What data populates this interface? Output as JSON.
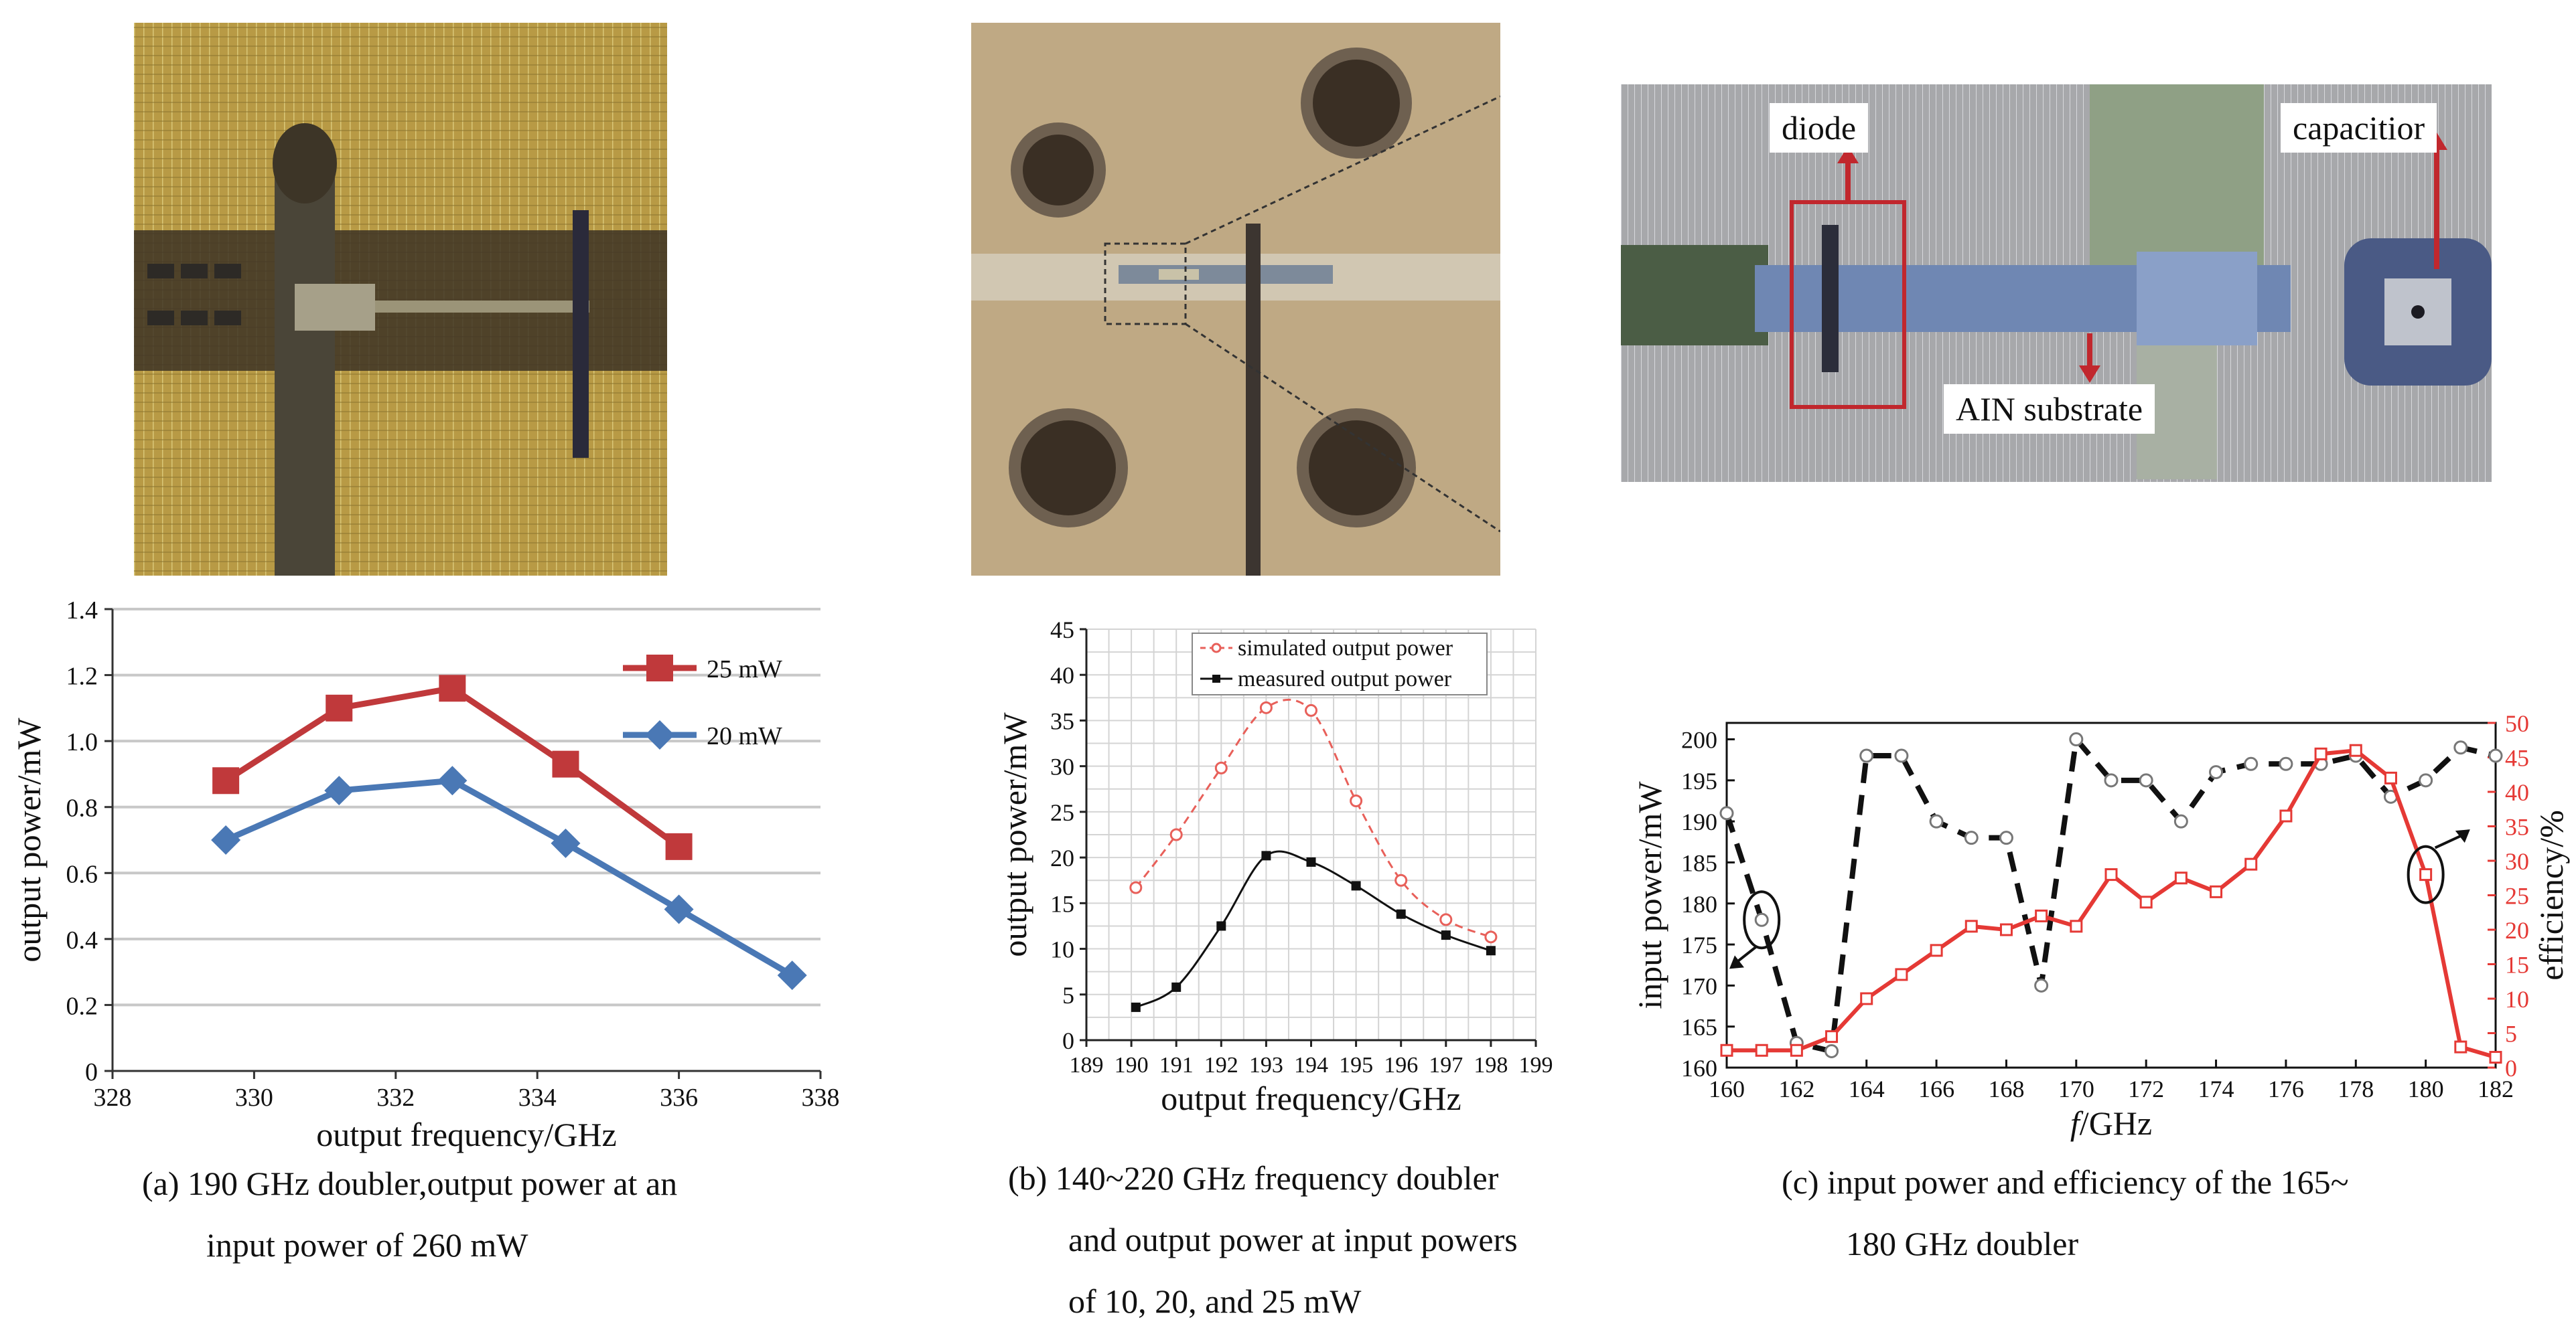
{
  "figure": {
    "photo_a": {
      "alt": "photo-a"
    },
    "photo_b": {
      "alt": "photo-b"
    },
    "photo_c": {
      "labels": {
        "diode": "diode",
        "capacitor": "capacitior",
        "substrate": "AIN substrate"
      }
    }
  },
  "captions": {
    "a": [
      "(a) 190 GHz doubler,output power at an",
      "input power of 260 mW"
    ],
    "b": [
      "(b) 140~220 GHz frequency doubler",
      "and output power at input powers",
      "of 10, 20, and 25 mW"
    ],
    "c": [
      "(c) input power and efficiency of the 165~",
      "180 GHz doubler"
    ]
  },
  "chart_data": [
    {
      "type": "line",
      "title": "",
      "xlabel": "output frequency/GHz",
      "ylabel": "output power/mW",
      "xlim": [
        328,
        338
      ],
      "ylim": [
        0,
        1.4
      ],
      "xticks": [
        328,
        330,
        332,
        334,
        336,
        338
      ],
      "yticks": [
        0,
        0.2,
        0.4,
        0.6,
        0.8,
        1.0,
        1.2,
        1.4
      ],
      "ytick_labels": [
        "0",
        "0.2",
        "0.4",
        "0.6",
        "0.8",
        "1.0",
        "1.2",
        "1.4"
      ],
      "legend_position": "top-right",
      "series": [
        {
          "name": "25 mW",
          "color": "#c0393b",
          "marker": "square",
          "x": [
            329.6,
            331.2,
            332.8,
            334.4,
            336.0
          ],
          "y": [
            0.88,
            1.1,
            1.16,
            0.93,
            0.68
          ]
        },
        {
          "name": "20 mW",
          "color": "#4a78b5",
          "marker": "diamond",
          "x": [
            329.6,
            331.2,
            332.8,
            334.4,
            336.0,
            337.6
          ],
          "y": [
            0.7,
            0.85,
            0.88,
            0.69,
            0.49,
            0.29
          ]
        }
      ]
    },
    {
      "type": "line",
      "title": "",
      "xlabel": "output frequency/GHz",
      "ylabel": "output power/mW",
      "xlim": [
        189,
        199
      ],
      "ylim": [
        0,
        45
      ],
      "xticks": [
        189,
        190,
        191,
        192,
        193,
        194,
        195,
        196,
        197,
        198,
        199
      ],
      "yticks": [
        0,
        5,
        10,
        15,
        20,
        25,
        30,
        35,
        40,
        45
      ],
      "grid": true,
      "legend_position": "top",
      "series": [
        {
          "name": "simulated output power",
          "color": "#e8605a",
          "marker": "open-circle",
          "dashed": true,
          "x": [
            190.1,
            191.0,
            192.0,
            193.0,
            194.0,
            195.0,
            196.0,
            197.0,
            198.0
          ],
          "y": [
            16.7,
            22.5,
            29.8,
            36.4,
            36.1,
            26.2,
            17.5,
            13.2,
            11.3
          ]
        },
        {
          "name": "measured  output power",
          "color": "#111111",
          "marker": "filled-square",
          "x": [
            190.1,
            191.0,
            192.0,
            193.0,
            194.0,
            195.0,
            196.0,
            197.0,
            198.0
          ],
          "y": [
            3.6,
            5.8,
            12.5,
            20.2,
            19.5,
            16.9,
            13.8,
            11.5,
            9.8
          ]
        }
      ]
    },
    {
      "type": "line",
      "title": "",
      "xlabel": "f/GHz",
      "xlabel_italic_part": "f",
      "xlabel_rest": "/GHz",
      "ylabel": "input power/mW",
      "y2label": "efficiency/%",
      "xlim": [
        160,
        182
      ],
      "ylim": [
        160,
        202
      ],
      "y2lim": [
        0,
        50
      ],
      "xticks": [
        160,
        162,
        164,
        166,
        168,
        170,
        172,
        174,
        176,
        178,
        180,
        182
      ],
      "yticks": [
        160,
        165,
        170,
        175,
        180,
        185,
        190,
        195,
        200
      ],
      "y2ticks": [
        0,
        5,
        10,
        15,
        20,
        25,
        30,
        35,
        40,
        45,
        50
      ],
      "series": [
        {
          "name": "",
          "axis": "left",
          "color": "#111111",
          "marker": "open-circle",
          "dashed": true,
          "x": [
            160,
            161,
            162,
            163,
            164,
            165,
            166,
            167,
            168,
            169,
            170,
            171,
            172,
            173,
            174,
            175,
            176,
            177,
            178,
            179,
            180,
            181,
            182
          ],
          "y": [
            191,
            178,
            163,
            162,
            198,
            198,
            190,
            188,
            188,
            170,
            200,
            195,
            195,
            190,
            196,
            197,
            197,
            197,
            198,
            193,
            195,
            199,
            198
          ]
        },
        {
          "name": "",
          "axis": "right",
          "color": "#e53935",
          "marker": "open-square",
          "dashed": false,
          "x": [
            160,
            161,
            162,
            163,
            164,
            165,
            166,
            167,
            168,
            169,
            170,
            171,
            172,
            173,
            174,
            175,
            176,
            177,
            178,
            179,
            180,
            181,
            182
          ],
          "y": [
            2.5,
            2.5,
            2.5,
            4.5,
            10,
            13.5,
            17,
            20.5,
            20,
            22,
            20.5,
            28,
            24,
            27.5,
            25.5,
            29.5,
            36.5,
            45.5,
            46,
            42,
            28,
            3,
            1.5
          ]
        }
      ]
    }
  ]
}
